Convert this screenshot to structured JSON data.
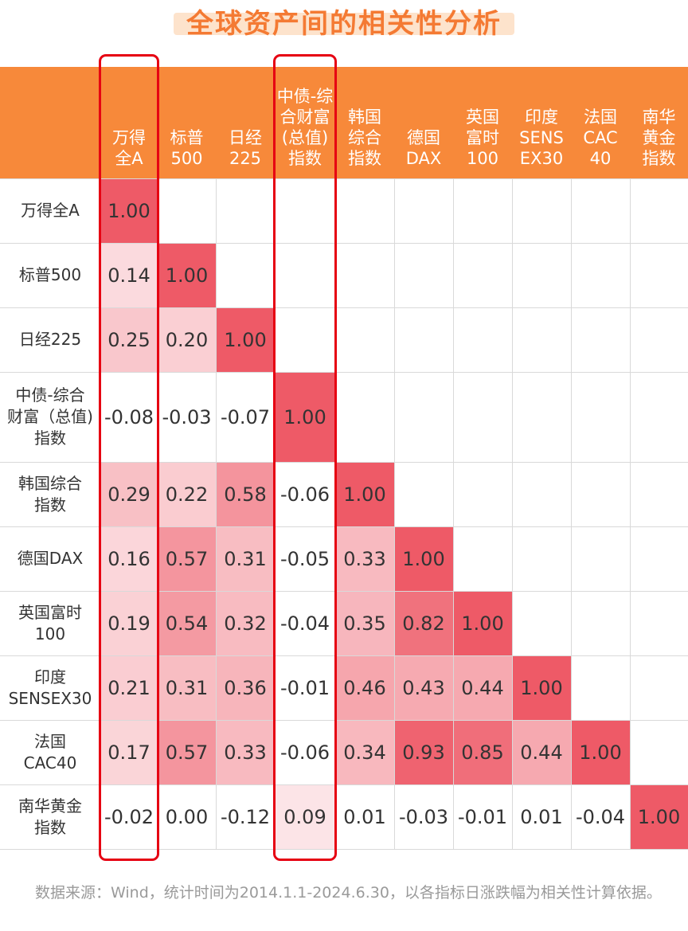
{
  "title": "全球资产间的相关性分析",
  "chart_data": {
    "type": "heatmap",
    "title": "全球资产间的相关性分析",
    "column_headers": [
      [
        "万得",
        "全A"
      ],
      [
        "标普",
        "500"
      ],
      [
        "日经",
        "225"
      ],
      [
        "中债-综",
        "合财富",
        "(总值)",
        "指数"
      ],
      [
        "韩国",
        "综合",
        "指数"
      ],
      [
        "德国",
        "DAX"
      ],
      [
        "英国",
        "富时",
        "100"
      ],
      [
        "印度",
        "SENS",
        "EX30"
      ],
      [
        "法国",
        "CAC",
        "40"
      ],
      [
        "南华",
        "黄金",
        "指数"
      ]
    ],
    "row_headers": [
      [
        "万得全A"
      ],
      [
        "标普500"
      ],
      [
        "日经225"
      ],
      [
        "中债-综合",
        "财富（总值)",
        "指数"
      ],
      [
        "韩国综合",
        "指数"
      ],
      [
        "德国DAX"
      ],
      [
        "英国富时",
        "100"
      ],
      [
        "印度",
        "SENSEX30"
      ],
      [
        "法国",
        "CAC40"
      ],
      [
        "南华黄金",
        "指数"
      ]
    ],
    "values": [
      [
        "1.00"
      ],
      [
        "0.14",
        "1.00"
      ],
      [
        "0.25",
        "0.20",
        "1.00"
      ],
      [
        "-0.08",
        "-0.03",
        "-0.07",
        "1.00"
      ],
      [
        "0.29",
        "0.22",
        "0.58",
        "-0.06",
        "1.00"
      ],
      [
        "0.16",
        "0.57",
        "0.31",
        "-0.05",
        "0.33",
        "1.00"
      ],
      [
        "0.19",
        "0.54",
        "0.32",
        "-0.04",
        "0.35",
        "0.82",
        "1.00"
      ],
      [
        "0.21",
        "0.31",
        "0.36",
        "-0.01",
        "0.46",
        "0.43",
        "0.44",
        "1.00"
      ],
      [
        "0.17",
        "0.57",
        "0.33",
        "-0.06",
        "0.34",
        "0.93",
        "0.85",
        "0.44",
        "1.00"
      ],
      [
        "-0.02",
        "0.00",
        "-0.12",
        "0.09",
        "0.01",
        "-0.03",
        "-0.01",
        "0.01",
        "-0.04",
        "1.00"
      ]
    ],
    "highlighted_columns": [
      0,
      3
    ],
    "colors": {
      "header_bg": "#f7893a",
      "title": "#f47a33",
      "highlight_border": "#e60012",
      "scale_low": "#fdeef0",
      "scale_high": "#ee5a67"
    }
  },
  "source_note": "数据来源：Wind，统计时间为2014.1.1-2024.6.30，以各指标日涨跌幅为相关性计算依据。"
}
